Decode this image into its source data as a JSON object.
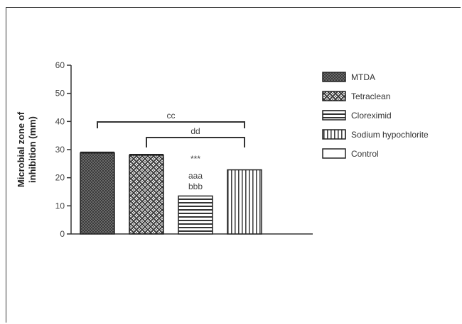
{
  "chart_data": {
    "type": "bar",
    "title": "",
    "xlabel": "",
    "ylabel": "Microbial zone of inhibition (mm)",
    "ylabel_lines": [
      "Microbial zone of",
      "inhibition (mm)"
    ],
    "ylim": [
      0,
      60
    ],
    "yticks": [
      0,
      10,
      20,
      30,
      40,
      50,
      60
    ],
    "grid": false,
    "legend_position": "right",
    "series": [
      {
        "name": "MTDA",
        "value": 28.8,
        "error": 0.3,
        "pattern": "dark-checker"
      },
      {
        "name": "Tetraclean",
        "value": 28.0,
        "error": 0.3,
        "pattern": "diamond-lattice"
      },
      {
        "name": "Cloreximid",
        "value": 13.5,
        "error": 0.0,
        "pattern": "horizontal-stripes"
      },
      {
        "name": "Sodium hypochlorite",
        "value": 22.8,
        "error": 0.0,
        "pattern": "vertical-stripes"
      },
      {
        "name": "Control",
        "value": 0,
        "error": 0.0,
        "pattern": "blank"
      }
    ],
    "annotations": {
      "bracket_cc": {
        "label": "cc",
        "from": 0,
        "to": 3
      },
      "bracket_dd": {
        "label": "dd",
        "from": 1,
        "to": 3
      },
      "bar_stats": [
        "***",
        "aaa",
        "bbb"
      ]
    }
  }
}
